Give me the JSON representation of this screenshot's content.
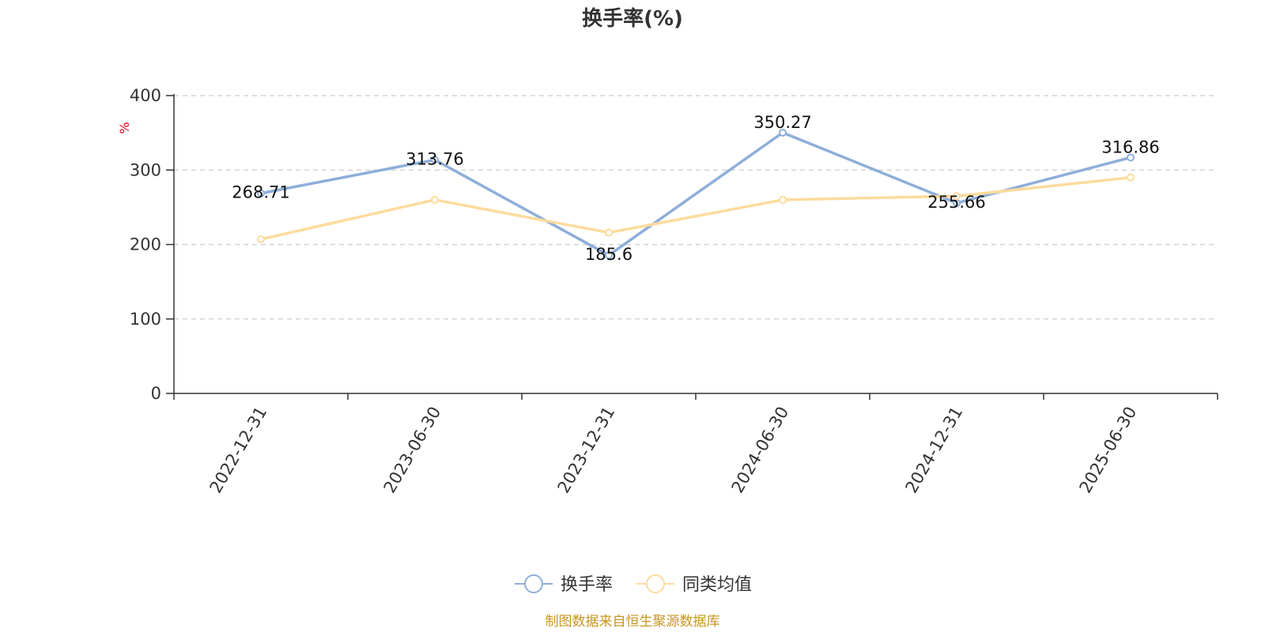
{
  "chart_data": {
    "type": "line",
    "title": "换手率(%)",
    "ylabel": "%",
    "xlabel": "",
    "categories": [
      "2022-12-31",
      "2023-06-30",
      "2023-12-31",
      "2024-06-30",
      "2024-12-31",
      "2025-06-30"
    ],
    "ylim": [
      0,
      400
    ],
    "yticks": [
      0,
      100,
      200,
      300,
      400
    ],
    "grid": true,
    "legend_position": "bottom-center",
    "series": [
      {
        "name": "换手率",
        "color": "#8eaed9",
        "values": [
          268.71,
          313.76,
          185.6,
          350.27,
          255.66,
          316.86
        ],
        "data_labels": [
          "268.71",
          "313.76",
          "185.6",
          "350.27",
          "255.66",
          "316.86"
        ],
        "label_side": [
          "below",
          "below",
          "below",
          "above",
          "below",
          "above"
        ]
      },
      {
        "name": "同类均值",
        "color": "#fddb9d",
        "values": [
          207,
          260,
          216,
          260,
          265,
          290
        ]
      }
    ],
    "source_text": "制图数据来自恒生聚源数据库"
  }
}
